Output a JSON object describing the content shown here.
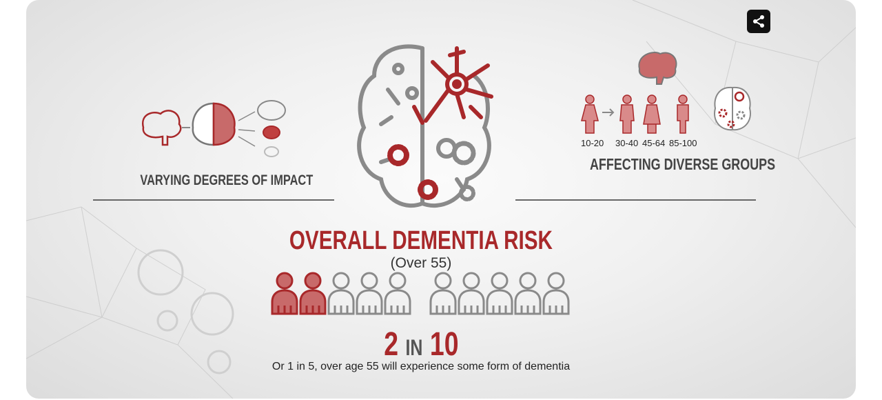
{
  "toolbar": {
    "share_icon": "share-icon"
  },
  "left_panel": {
    "caption": "VARYING DEGREES OF IMPACT"
  },
  "right_panel": {
    "caption": "AFFECTING DIVERSE GROUPS",
    "age_groups": [
      "10-20",
      "30-40",
      "45-64",
      "85-100"
    ]
  },
  "main": {
    "title": "OVERALL DEMENTIA RISK",
    "subtitle": "(Over 55)",
    "affected_count": 2,
    "total_count": 10,
    "stat_number": "2",
    "stat_in": "IN",
    "stat_total": "10",
    "description": "Or 1 in 5, over age 55 will experience some form of dementia"
  },
  "colors": {
    "accent": "#a8282a",
    "gray": "#8a8a8a",
    "text": "#444444"
  }
}
